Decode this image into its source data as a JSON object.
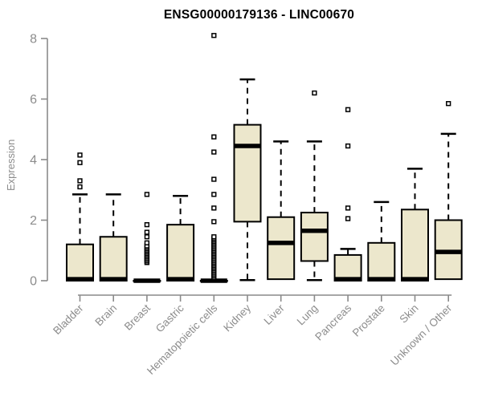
{
  "chart_data": {
    "type": "boxplot",
    "title": "ENSG00000179136 - LINC00670",
    "xlabel": "",
    "ylabel": "Expression",
    "ylim": [
      0,
      8.2
    ],
    "yticks": [
      0,
      2,
      4,
      6,
      8
    ],
    "grid": false,
    "legend": false,
    "colors": {
      "box_fill": "#ECE7CC",
      "box_stroke": "#000000",
      "median": "#000000",
      "whisker": "#000000",
      "outlier_stroke": "#000000",
      "outlier_fill": "#ffffff",
      "axis_line": "#8a8a8a",
      "tick_text": "#8c8c8c",
      "title_text": "#000000"
    },
    "categories": [
      "Bladder",
      "Brain",
      "Breast",
      "Gastric",
      "Hematopoietic cells",
      "Kidney",
      "Liver",
      "Lung",
      "Pancreas",
      "Prostate",
      "Skin",
      "Unknown / Other"
    ],
    "boxes": [
      {
        "category": "Bladder",
        "whisker_low": 0,
        "q1": 0,
        "median": 0.05,
        "q3": 1.2,
        "whisker_high": 2.85,
        "outliers": [
          3.1,
          3.3,
          3.9,
          4.15
        ]
      },
      {
        "category": "Brain",
        "whisker_low": 0,
        "q1": 0,
        "median": 0.05,
        "q3": 1.45,
        "whisker_high": 2.85,
        "outliers": []
      },
      {
        "category": "Breast",
        "whisker_low": 0,
        "q1": 0,
        "median": 0,
        "q3": 0,
        "whisker_high": 0,
        "outliers": [
          0.6,
          0.65,
          0.7,
          0.75,
          0.8,
          0.85,
          0.9,
          0.95,
          1.0,
          1.05,
          1.1,
          1.15,
          1.25,
          1.45,
          1.6,
          1.85,
          2.85
        ]
      },
      {
        "category": "Gastric",
        "whisker_low": 0,
        "q1": 0,
        "median": 0.05,
        "q3": 1.85,
        "whisker_high": 2.8,
        "outliers": []
      },
      {
        "category": "Hematopoietic cells",
        "whisker_low": 0,
        "q1": 0,
        "median": 0,
        "q3": 0,
        "whisker_high": 0,
        "outliers": [
          0.1,
          0.15,
          0.2,
          0.25,
          0.3,
          0.35,
          0.4,
          0.45,
          0.5,
          0.55,
          0.6,
          0.65,
          0.7,
          0.75,
          0.8,
          0.85,
          0.9,
          0.95,
          1.0,
          1.05,
          1.1,
          1.15,
          1.2,
          1.25,
          1.3,
          1.35,
          1.4,
          1.45,
          1.95,
          2.4,
          2.85,
          3.35,
          4.25,
          4.75,
          8.1
        ]
      },
      {
        "category": "Kidney",
        "whisker_low": 0.02,
        "q1": 1.95,
        "median": 4.45,
        "q3": 5.15,
        "whisker_high": 6.65,
        "outliers": []
      },
      {
        "category": "Liver",
        "whisker_low": 0.05,
        "q1": 0.05,
        "median": 1.25,
        "q3": 2.1,
        "whisker_high": 4.6,
        "outliers": []
      },
      {
        "category": "Lung",
        "whisker_low": 0.02,
        "q1": 0.65,
        "median": 1.65,
        "q3": 2.25,
        "whisker_high": 4.6,
        "outliers": [
          6.2
        ]
      },
      {
        "category": "Pancreas",
        "whisker_low": 0,
        "q1": 0,
        "median": 0.05,
        "q3": 0.85,
        "whisker_high": 1.05,
        "outliers": [
          2.05,
          2.4,
          4.45,
          5.65
        ]
      },
      {
        "category": "Prostate",
        "whisker_low": 0,
        "q1": 0,
        "median": 0.05,
        "q3": 1.25,
        "whisker_high": 2.6,
        "outliers": []
      },
      {
        "category": "Skin",
        "whisker_low": 0,
        "q1": 0,
        "median": 0.05,
        "q3": 2.35,
        "whisker_high": 3.7,
        "outliers": []
      },
      {
        "category": "Unknown / Other",
        "whisker_low": 0.05,
        "q1": 0.05,
        "median": 0.95,
        "q3": 2.0,
        "whisker_high": 4.85,
        "outliers": [
          5.85
        ]
      }
    ]
  }
}
